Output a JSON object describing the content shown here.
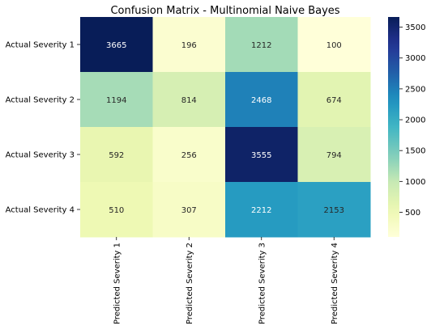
{
  "chart_data": {
    "type": "heatmap",
    "title": "Confusion Matrix - Multinomial Naive Bayes",
    "row_labels": [
      "Actual Severity 1",
      "Actual Severity 2",
      "Actual Severity 3",
      "Actual Severity 4"
    ],
    "col_labels": [
      "Predicted Severity 1",
      "Predicted Severity 2",
      "Predicted Severity 3",
      "Predicted Severity 4"
    ],
    "values": [
      [
        3665,
        196,
        1212,
        100
      ],
      [
        1194,
        814,
        2468,
        674
      ],
      [
        592,
        256,
        3555,
        794
      ],
      [
        510,
        307,
        2212,
        2153
      ]
    ],
    "colormap": "YlGnBu",
    "vmin": 100,
    "vmax": 3665,
    "colorbar_ticks": [
      500,
      1000,
      1500,
      2000,
      2500,
      3000,
      3500
    ],
    "xlabel": "",
    "ylabel": "",
    "grid": false
  }
}
